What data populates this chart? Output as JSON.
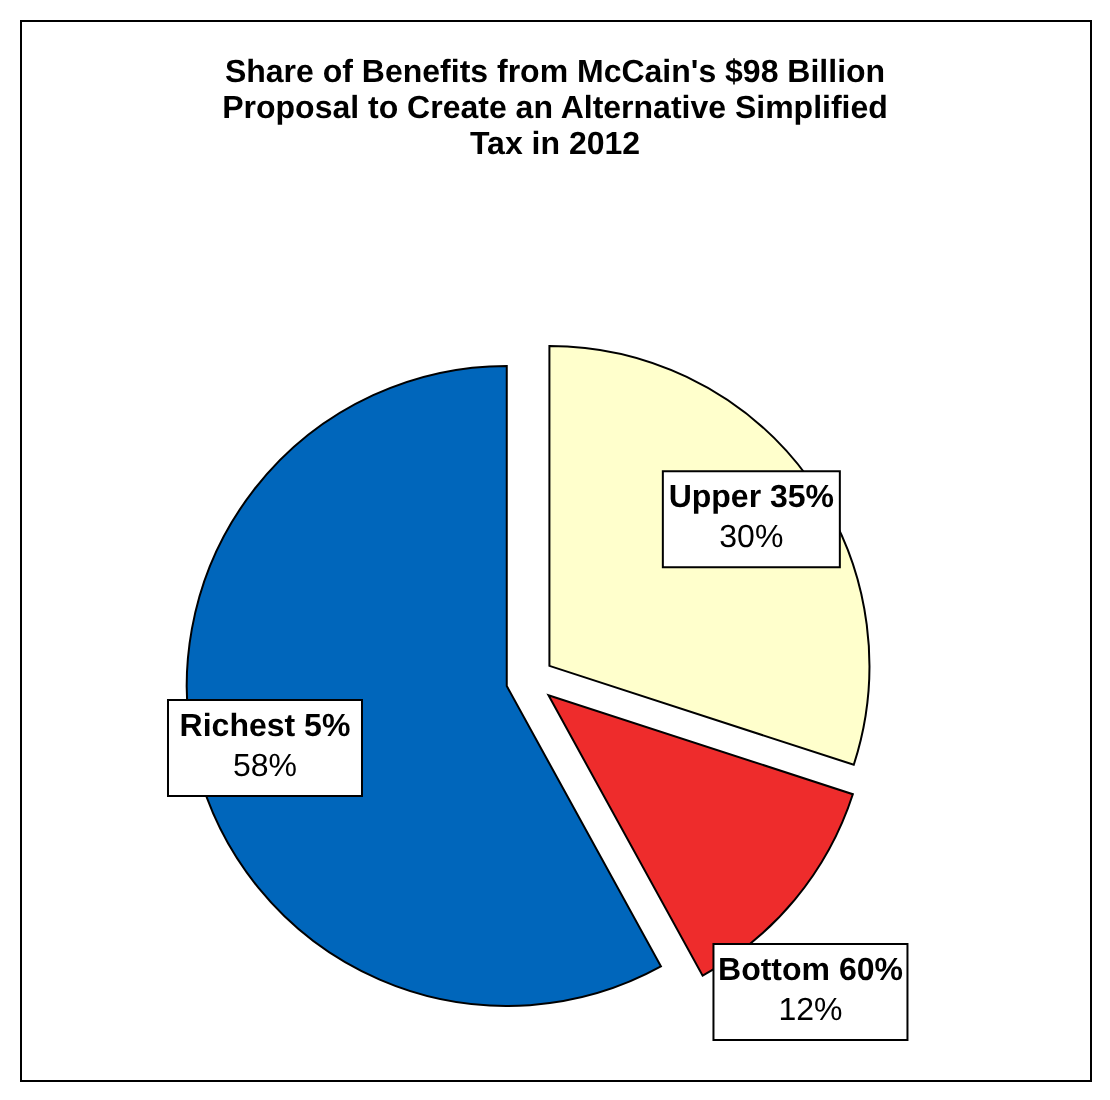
{
  "chart_data": {
    "type": "pie",
    "title": "Share of Benefits from McCain's $98 Billion Proposal to Create an Alternative Simplified Tax in 2012",
    "categories": [
      "Upper 35%",
      "Bottom 60%",
      "Richest 5%"
    ],
    "values": [
      30,
      12,
      58
    ],
    "colors": [
      "#ffffcc",
      "#ee2c2c",
      "#0066bb"
    ],
    "value_labels": [
      "30%",
      "12%",
      "58%"
    ]
  }
}
